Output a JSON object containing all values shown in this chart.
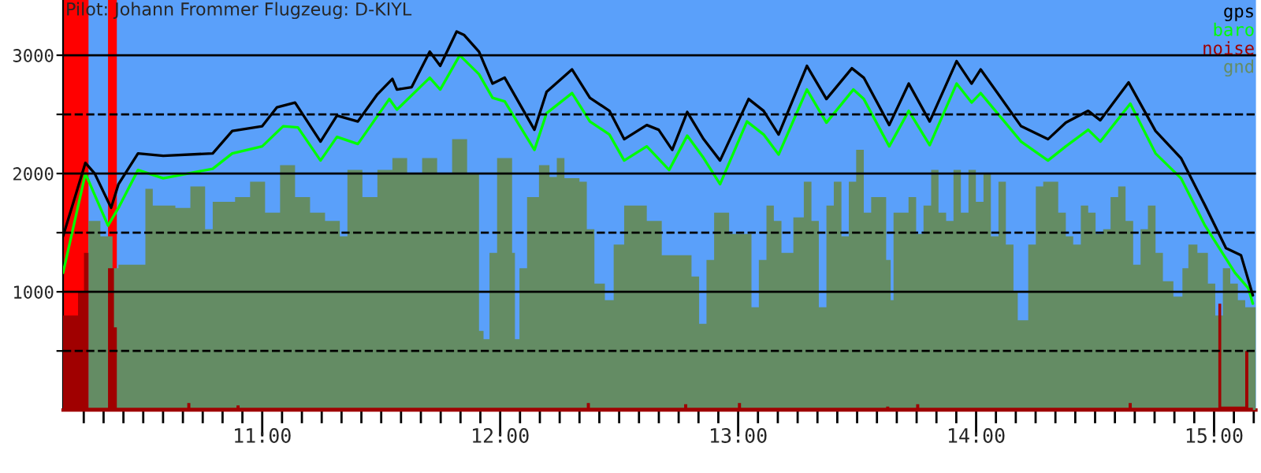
{
  "chart_data": {
    "type": "line",
    "title": "Pilot: Johann Frommer Flugzeug: D-KIYL",
    "xlim": [
      10.163,
      15.176
    ],
    "ylim": [
      0,
      3467
    ],
    "xticks": [
      {
        "value": 10.25,
        "label": null
      },
      {
        "value": 10.3333,
        "label": null
      },
      {
        "value": 10.4167,
        "label": null
      },
      {
        "value": 10.5,
        "label": null
      },
      {
        "value": 10.5833,
        "label": null
      },
      {
        "value": 10.6667,
        "label": null
      },
      {
        "value": 10.75,
        "label": null
      },
      {
        "value": 10.8333,
        "label": null
      },
      {
        "value": 10.9167,
        "label": null
      },
      {
        "value": 11,
        "label": "11:00"
      },
      {
        "value": 11.0833,
        "label": null
      },
      {
        "value": 11.1667,
        "label": null
      },
      {
        "value": 11.25,
        "label": null
      },
      {
        "value": 11.3333,
        "label": null
      },
      {
        "value": 11.4167,
        "label": null
      },
      {
        "value": 11.5,
        "label": null
      },
      {
        "value": 11.5833,
        "label": null
      },
      {
        "value": 11.6667,
        "label": null
      },
      {
        "value": 11.75,
        "label": null
      },
      {
        "value": 11.8333,
        "label": null
      },
      {
        "value": 11.9167,
        "label": null
      },
      {
        "value": 12,
        "label": "12:00"
      },
      {
        "value": 12.0833,
        "label": null
      },
      {
        "value": 12.1667,
        "label": null
      },
      {
        "value": 12.25,
        "label": null
      },
      {
        "value": 12.3333,
        "label": null
      },
      {
        "value": 12.4167,
        "label": null
      },
      {
        "value": 12.5,
        "label": null
      },
      {
        "value": 12.5833,
        "label": null
      },
      {
        "value": 12.6667,
        "label": null
      },
      {
        "value": 12.75,
        "label": null
      },
      {
        "value": 12.8333,
        "label": null
      },
      {
        "value": 12.9167,
        "label": null
      },
      {
        "value": 13,
        "label": "13:00"
      },
      {
        "value": 13.0833,
        "label": null
      },
      {
        "value": 13.1667,
        "label": null
      },
      {
        "value": 13.25,
        "label": null
      },
      {
        "value": 13.3333,
        "label": null
      },
      {
        "value": 13.4167,
        "label": null
      },
      {
        "value": 13.5,
        "label": null
      },
      {
        "value": 13.5833,
        "label": null
      },
      {
        "value": 13.6667,
        "label": null
      },
      {
        "value": 13.75,
        "label": null
      },
      {
        "value": 13.8333,
        "label": null
      },
      {
        "value": 13.9167,
        "label": null
      },
      {
        "value": 14,
        "label": "14:00"
      },
      {
        "value": 14.0833,
        "label": null
      },
      {
        "value": 14.1667,
        "label": null
      },
      {
        "value": 14.25,
        "label": null
      },
      {
        "value": 14.3333,
        "label": null
      },
      {
        "value": 14.4167,
        "label": null
      },
      {
        "value": 14.5,
        "label": null
      },
      {
        "value": 14.5833,
        "label": null
      },
      {
        "value": 14.6667,
        "label": null
      },
      {
        "value": 14.75,
        "label": null
      },
      {
        "value": 14.8333,
        "label": null
      },
      {
        "value": 14.9167,
        "label": null
      },
      {
        "value": 15,
        "label": "15:00"
      },
      {
        "value": 15.0833,
        "label": null
      },
      {
        "value": 15.1667,
        "label": null
      }
    ],
    "yticks": [
      {
        "value": 500,
        "label": null
      },
      1000,
      {
        "value": 1500,
        "label": null
      },
      2000,
      {
        "value": 2500,
        "label": null
      },
      3000
    ],
    "grid": "y",
    "legend": "top right",
    "bands": [
      {
        "axis": "x",
        "from": 10.163,
        "to": 10.27,
        "color": "#ff0000"
      },
      {
        "axis": "x",
        "from": 10.352,
        "to": 10.389,
        "color": "#ff0000"
      }
    ],
    "series": [
      {
        "name": "gnd",
        "type": "area",
        "color": "#648c64",
        "x": [
          10.27,
          10.32,
          10.371,
          10.396,
          10.478,
          10.509,
          10.54,
          10.635,
          10.698,
          10.76,
          10.792,
          10.886,
          10.949,
          11.012,
          11.075,
          11.138,
          11.201,
          11.264,
          11.326,
          11.358,
          11.421,
          11.484,
          11.547,
          11.609,
          11.672,
          11.735,
          11.798,
          11.861,
          11.911,
          11.93,
          11.955,
          11.987,
          12.031,
          12.05,
          12.062,
          12.081,
          12.113,
          12.163,
          12.207,
          12.238,
          12.27,
          12.333,
          12.364,
          12.396,
          12.44,
          12.477,
          12.521,
          12.572,
          12.616,
          12.679,
          12.741,
          12.804,
          12.836,
          12.867,
          12.899,
          12.962,
          13.025,
          13.056,
          13.087,
          13.119,
          13.15,
          13.182,
          13.232,
          13.276,
          13.308,
          13.339,
          13.371,
          13.402,
          13.434,
          13.465,
          13.496,
          13.528,
          13.559,
          13.622,
          13.641,
          13.653,
          13.716,
          13.748,
          13.779,
          13.811,
          13.842,
          13.874,
          13.905,
          13.936,
          13.968,
          13.999,
          14.031,
          14.062,
          14.094,
          14.125,
          14.157,
          14.175,
          14.219,
          14.251,
          14.282,
          14.345,
          14.377,
          14.408,
          14.44,
          14.471,
          14.502,
          14.534,
          14.565,
          14.597,
          14.628,
          14.66,
          14.691,
          14.722,
          14.754,
          14.785,
          14.829,
          14.867,
          14.892,
          14.93,
          14.974,
          15.005,
          15.037,
          15.068,
          15.1,
          15.131,
          15.175
        ],
        "values": [
          1600,
          1470,
          1200,
          1230,
          1230,
          1870,
          1730,
          1710,
          1890,
          1530,
          1760,
          1800,
          1930,
          1670,
          2070,
          1800,
          1670,
          1600,
          1470,
          2030,
          1800,
          2030,
          2130,
          2000,
          2130,
          2000,
          2290,
          2000,
          670,
          600,
          1330,
          2130,
          2130,
          1330,
          600,
          1200,
          1800,
          2070,
          1970,
          2130,
          1960,
          1930,
          1530,
          1070,
          930,
          1400,
          1730,
          1730,
          1600,
          1310,
          1310,
          1130,
          730,
          1270,
          1670,
          1490,
          1490,
          870,
          1270,
          1730,
          1600,
          1330,
          1630,
          1930,
          1600,
          870,
          1730,
          1930,
          1470,
          1930,
          2200,
          1670,
          1800,
          1270,
          930,
          1670,
          1800,
          1490,
          1730,
          2030,
          1670,
          1600,
          2030,
          1670,
          2030,
          1760,
          2000,
          1470,
          1930,
          1400,
          1000,
          760,
          1400,
          1890,
          1930,
          1670,
          1470,
          1400,
          1730,
          1670,
          1490,
          1530,
          1800,
          1890,
          1600,
          1230,
          1530,
          1730,
          1330,
          1090,
          960,
          1200,
          1400,
          1330,
          1070,
          800,
          1200,
          1070,
          930,
          870,
          800
        ]
      },
      {
        "name": "noise",
        "type": "area",
        "color": "#a00000",
        "x": [
          10.163,
          10.226,
          10.251,
          10.27,
          10.352,
          10.377,
          10.389,
          10.685,
          10.698,
          10.892,
          10.905,
          12.364,
          12.377,
          12.773,
          12.786,
          12.999,
          13.012,
          13.622,
          13.635,
          13.748,
          13.761,
          14.641,
          14.654,
          15.005,
          15.018,
          15.03,
          15.131,
          15.144,
          15.163
        ],
        "values": [
          800,
          1000,
          1330,
          20,
          1200,
          700,
          20,
          60,
          20,
          40,
          20,
          60,
          20,
          50,
          20,
          60,
          20,
          30,
          20,
          50,
          20,
          60,
          20,
          20,
          900,
          30,
          500,
          20,
          450
        ]
      },
      {
        "name": "baro",
        "color": "#00ff00",
        "x": [
          10.163,
          10.257,
          10.352,
          10.396,
          10.478,
          10.584,
          10.792,
          10.874,
          11.0,
          11.088,
          11.15,
          11.245,
          11.314,
          11.402,
          11.534,
          11.566,
          11.704,
          11.748,
          11.83,
          11.911,
          11.968,
          12.019,
          12.144,
          12.195,
          12.302,
          12.377,
          12.459,
          12.521,
          12.616,
          12.71,
          12.786,
          12.855,
          12.924,
          13.037,
          13.107,
          13.17,
          13.289,
          13.371,
          13.484,
          13.528,
          13.635,
          13.717,
          13.805,
          13.918,
          13.981,
          14.019,
          14.189,
          14.302,
          14.377,
          14.471,
          14.522,
          14.648,
          14.754,
          14.861,
          14.962,
          15.088,
          15.144,
          15.163
        ],
        "values": [
          1160,
          2000,
          1560,
          1710,
          2030,
          1960,
          2040,
          2170,
          2230,
          2400,
          2390,
          2110,
          2310,
          2250,
          2630,
          2540,
          2810,
          2710,
          3000,
          2840,
          2640,
          2610,
          2200,
          2510,
          2680,
          2440,
          2330,
          2110,
          2230,
          2030,
          2320,
          2130,
          1910,
          2440,
          2330,
          2160,
          2710,
          2430,
          2710,
          2630,
          2230,
          2530,
          2240,
          2760,
          2600,
          2680,
          2270,
          2110,
          2230,
          2370,
          2270,
          2590,
          2170,
          1960,
          1560,
          1160,
          1030,
          900
        ]
      },
      {
        "name": "gps",
        "color": "#000000",
        "x": [
          10.163,
          10.257,
          10.296,
          10.365,
          10.396,
          10.478,
          10.584,
          10.792,
          10.874,
          11.0,
          11.062,
          11.138,
          11.245,
          11.314,
          11.402,
          11.484,
          11.547,
          11.566,
          11.628,
          11.704,
          11.748,
          11.817,
          11.849,
          11.911,
          11.968,
          12.019,
          12.144,
          12.195,
          12.302,
          12.377,
          12.459,
          12.521,
          12.616,
          12.666,
          12.723,
          12.786,
          12.855,
          12.924,
          13.044,
          13.107,
          13.17,
          13.289,
          13.371,
          13.478,
          13.528,
          13.635,
          13.717,
          13.805,
          13.918,
          13.981,
          14.019,
          14.189,
          14.302,
          14.377,
          14.471,
          14.522,
          14.641,
          14.754,
          14.861,
          14.962,
          15.05,
          15.113,
          15.163
        ],
        "values": [
          1470,
          2090,
          2000,
          1710,
          1910,
          2170,
          2150,
          2170,
          2360,
          2400,
          2560,
          2600,
          2270,
          2490,
          2440,
          2670,
          2800,
          2710,
          2730,
          3030,
          2910,
          3200,
          3170,
          3030,
          2760,
          2810,
          2370,
          2690,
          2880,
          2640,
          2530,
          2290,
          2410,
          2370,
          2200,
          2520,
          2290,
          2110,
          2630,
          2530,
          2330,
          2910,
          2630,
          2890,
          2810,
          2410,
          2760,
          2440,
          2950,
          2760,
          2880,
          2400,
          2290,
          2430,
          2530,
          2450,
          2770,
          2360,
          2130,
          1730,
          1370,
          1310,
          970
        ]
      }
    ]
  }
}
